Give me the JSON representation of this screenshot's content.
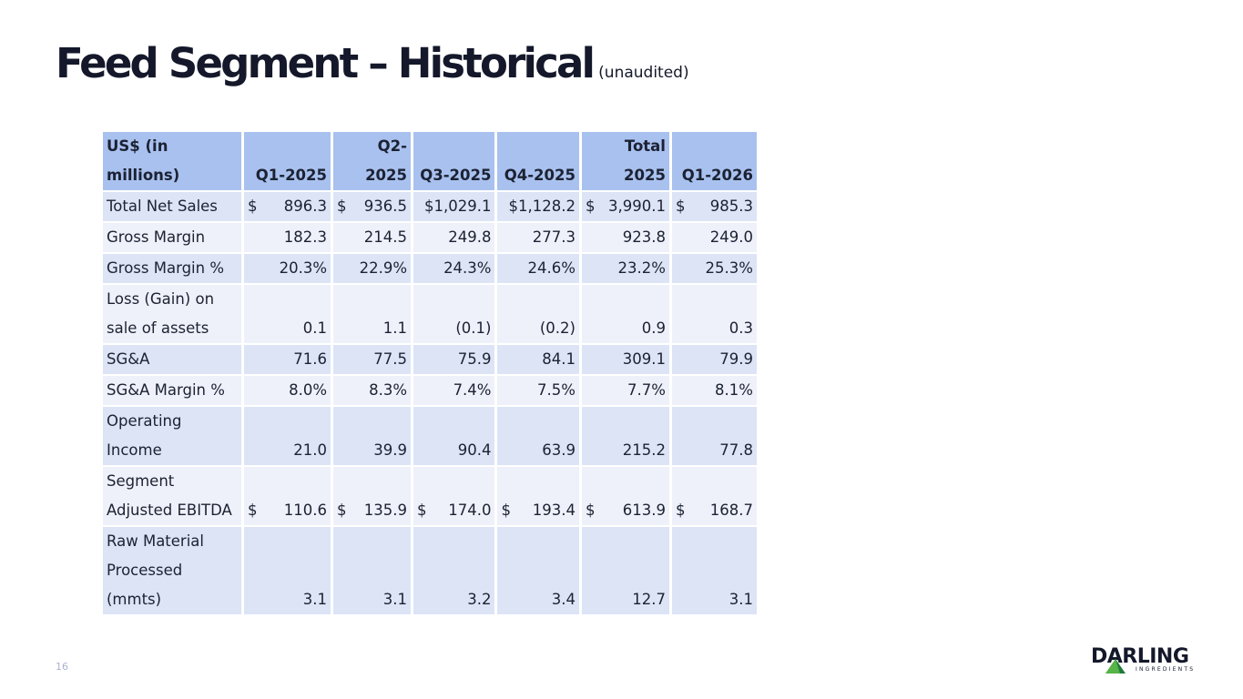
{
  "slide": {
    "title": "Feed Segment – Historical",
    "subtitle": "(unaudited)",
    "page_number": "16"
  },
  "table": {
    "header": {
      "label": "US$ (in millions)",
      "columns": [
        {
          "line1": "",
          "line2": "Q1-2025"
        },
        {
          "line1": "",
          "line2": "Q2-2025"
        },
        {
          "line1": "",
          "line2": "Q3-2025"
        },
        {
          "line1": "",
          "line2": "Q4-2025"
        },
        {
          "line1": "Total",
          "line2": "2025"
        },
        {
          "line1": "",
          "line2": "Q1-2026"
        }
      ]
    },
    "rows": [
      {
        "label": "Total Net Sales",
        "cells": [
          {
            "cur": "$",
            "val": "896.3"
          },
          {
            "cur": "$",
            "val": "936.5"
          },
          {
            "cur": "",
            "val": "$1,029.1"
          },
          {
            "cur": "",
            "val": "$1,128.2"
          },
          {
            "cur": "$",
            "val": "3,990.1"
          },
          {
            "cur": "$",
            "val": "985.3"
          }
        ]
      },
      {
        "label": "Gross Margin",
        "cells": [
          {
            "cur": "",
            "val": "182.3"
          },
          {
            "cur": "",
            "val": "214.5"
          },
          {
            "cur": "",
            "val": "249.8"
          },
          {
            "cur": "",
            "val": "277.3"
          },
          {
            "cur": "",
            "val": "923.8"
          },
          {
            "cur": "",
            "val": "249.0"
          }
        ]
      },
      {
        "label": "Gross Margin %",
        "cells": [
          {
            "cur": "",
            "val": "20.3%"
          },
          {
            "cur": "",
            "val": "22.9%"
          },
          {
            "cur": "",
            "val": "24.3%"
          },
          {
            "cur": "",
            "val": "24.6%"
          },
          {
            "cur": "",
            "val": "23.2%"
          },
          {
            "cur": "",
            "val": "25.3%"
          }
        ]
      },
      {
        "label": "Loss (Gain) on sale of assets",
        "cells": [
          {
            "cur": "",
            "val": "0.1"
          },
          {
            "cur": "",
            "val": "1.1"
          },
          {
            "cur": "",
            "val": "(0.1)"
          },
          {
            "cur": "",
            "val": "(0.2)"
          },
          {
            "cur": "",
            "val": "0.9"
          },
          {
            "cur": "",
            "val": "0.3"
          }
        ]
      },
      {
        "label": "SG&A",
        "cells": [
          {
            "cur": "",
            "val": "71.6"
          },
          {
            "cur": "",
            "val": "77.5"
          },
          {
            "cur": "",
            "val": "75.9"
          },
          {
            "cur": "",
            "val": "84.1"
          },
          {
            "cur": "",
            "val": "309.1"
          },
          {
            "cur": "",
            "val": "79.9"
          }
        ]
      },
      {
        "label": "SG&A Margin %",
        "cells": [
          {
            "cur": "",
            "val": "8.0%"
          },
          {
            "cur": "",
            "val": "8.3%"
          },
          {
            "cur": "",
            "val": "7.4%"
          },
          {
            "cur": "",
            "val": "7.5%"
          },
          {
            "cur": "",
            "val": "7.7%"
          },
          {
            "cur": "",
            "val": "8.1%"
          }
        ]
      },
      {
        "label": "Operating Income",
        "cells": [
          {
            "cur": "",
            "val": "21.0"
          },
          {
            "cur": "",
            "val": "39.9"
          },
          {
            "cur": "",
            "val": "90.4"
          },
          {
            "cur": "",
            "val": "63.9"
          },
          {
            "cur": "",
            "val": "215.2"
          },
          {
            "cur": "",
            "val": "77.8"
          }
        ]
      },
      {
        "label": "Segment Adjusted EBITDA",
        "cells": [
          {
            "cur": "$",
            "val": "110.6"
          },
          {
            "cur": "$",
            "val": "135.9"
          },
          {
            "cur": "$",
            "val": "174.0"
          },
          {
            "cur": "$",
            "val": "193.4"
          },
          {
            "cur": "$",
            "val": "613.9"
          },
          {
            "cur": "$",
            "val": "168.7"
          }
        ]
      },
      {
        "label": "Raw Material Processed (mmts)",
        "cells": [
          {
            "cur": "",
            "val": "3.1"
          },
          {
            "cur": "",
            "val": "3.1"
          },
          {
            "cur": "",
            "val": "3.2"
          },
          {
            "cur": "",
            "val": "3.4"
          },
          {
            "cur": "",
            "val": "12.7"
          },
          {
            "cur": "",
            "val": "3.1"
          }
        ]
      }
    ]
  },
  "logo": {
    "wordmark": "DARLING",
    "tagline": "INGREDIENTS",
    "colors": {
      "text": "#14182a",
      "leaf_light": "#57b447",
      "leaf_dark": "#1f7a3a"
    }
  },
  "colors": {
    "header_bg": "#a9c1ef",
    "row_odd_bg": "#dce4f6",
    "row_even_bg": "#eef1fa",
    "text": "#14182a"
  }
}
